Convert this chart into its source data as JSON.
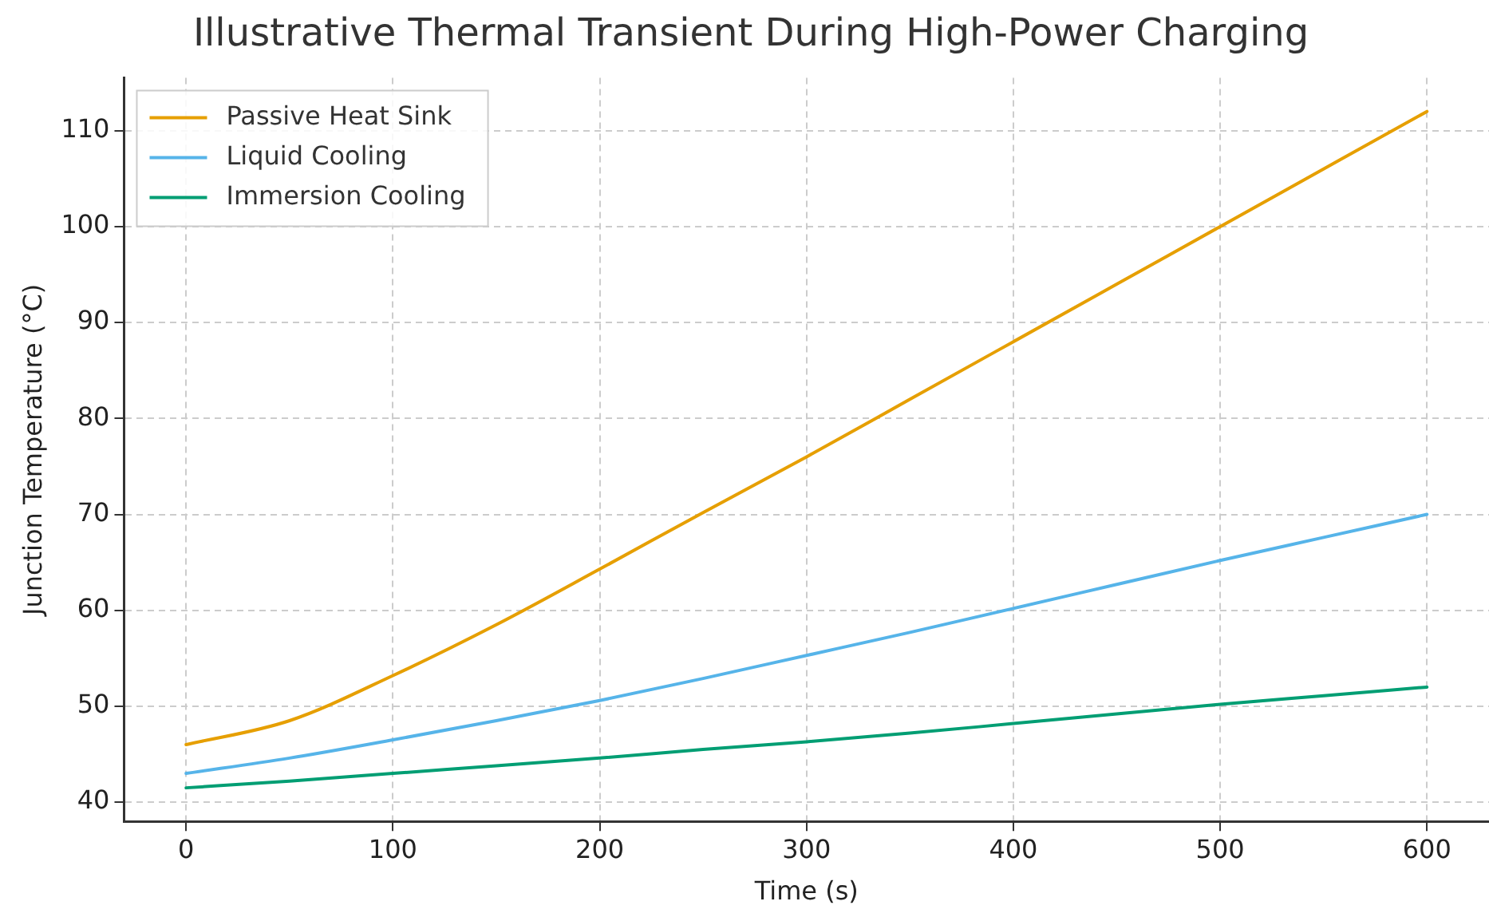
{
  "chart_data": {
    "type": "line",
    "title": "Illustrative Thermal Transient During High-Power Charging",
    "xlabel": "Time (s)",
    "ylabel": "Junction Temperature (°C)",
    "x": [
      0,
      50,
      100,
      150,
      200,
      250,
      300,
      350,
      400,
      450,
      500,
      550,
      600
    ],
    "series": [
      {
        "name": "Passive Heat Sink",
        "color": "#e69f00",
        "values": [
          46,
          48.5,
          53.2,
          58.5,
          64.3,
          70.2,
          76,
          82,
          88,
          94,
          100,
          106,
          112
        ]
      },
      {
        "name": "Liquid Cooling",
        "color": "#56b4e9",
        "values": [
          43,
          44.6,
          46.5,
          48.5,
          50.6,
          52.9,
          55.3,
          57.7,
          60.2,
          62.7,
          65.2,
          67.6,
          70
        ]
      },
      {
        "name": "Immersion Cooling",
        "color": "#009e73",
        "values": [
          41.5,
          42.2,
          43,
          43.8,
          44.6,
          45.5,
          46.3,
          47.2,
          48.2,
          49.2,
          50.2,
          51.1,
          52
        ]
      }
    ],
    "xlim": [
      -30,
      630
    ],
    "xticks": [
      0,
      100,
      200,
      300,
      400,
      500,
      600
    ],
    "ylim": [
      38,
      115.5
    ],
    "yticks": [
      40,
      50,
      60,
      70,
      80,
      90,
      100,
      110
    ],
    "grid": true,
    "legend": "top left",
    "marker": "none",
    "line_style": "solid"
  }
}
